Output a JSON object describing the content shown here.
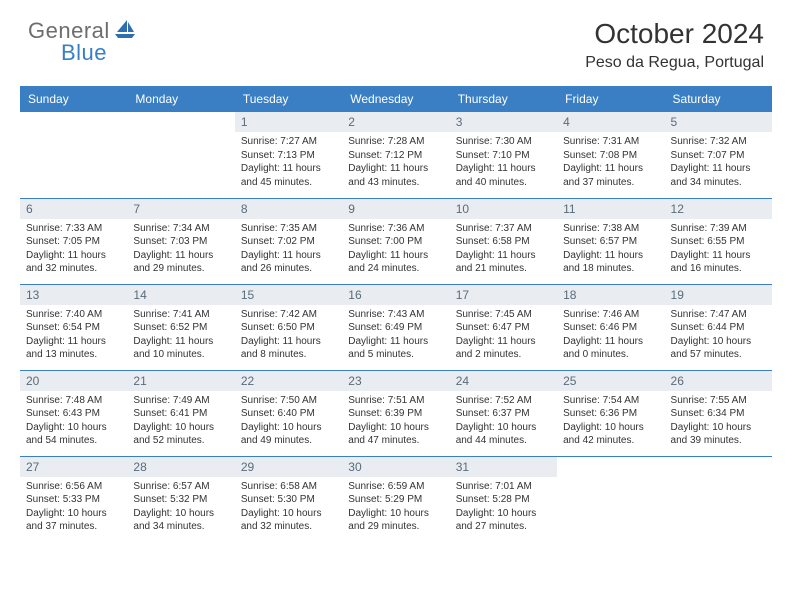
{
  "brand": {
    "text1": "General",
    "text2": "Blue",
    "color_general": "#6d6d6d",
    "color_blue": "#3a7fc4"
  },
  "header": {
    "title": "October 2024",
    "location": "Peso da Regua, Portugal"
  },
  "styling": {
    "header_bg": "#3a7fc4",
    "header_text": "#ffffff",
    "daynum_bg": "#e9edf1",
    "daynum_color": "#5a6b7a",
    "row_border": "#3a7fc4",
    "body_text": "#333333",
    "page_bg": "#ffffff",
    "title_fontsize": 28,
    "location_fontsize": 16,
    "dayheader_fontsize": 12,
    "daynum_fontsize": 12,
    "body_fontsize": 10
  },
  "calendar": {
    "type": "table",
    "days": [
      "Sunday",
      "Monday",
      "Tuesday",
      "Wednesday",
      "Thursday",
      "Friday",
      "Saturday"
    ],
    "weeks": [
      [
        {
          "n": "",
          "sr": "",
          "ss": "",
          "dl": ""
        },
        {
          "n": "",
          "sr": "",
          "ss": "",
          "dl": ""
        },
        {
          "n": "1",
          "sr": "Sunrise: 7:27 AM",
          "ss": "Sunset: 7:13 PM",
          "dl": "Daylight: 11 hours and 45 minutes."
        },
        {
          "n": "2",
          "sr": "Sunrise: 7:28 AM",
          "ss": "Sunset: 7:12 PM",
          "dl": "Daylight: 11 hours and 43 minutes."
        },
        {
          "n": "3",
          "sr": "Sunrise: 7:30 AM",
          "ss": "Sunset: 7:10 PM",
          "dl": "Daylight: 11 hours and 40 minutes."
        },
        {
          "n": "4",
          "sr": "Sunrise: 7:31 AM",
          "ss": "Sunset: 7:08 PM",
          "dl": "Daylight: 11 hours and 37 minutes."
        },
        {
          "n": "5",
          "sr": "Sunrise: 7:32 AM",
          "ss": "Sunset: 7:07 PM",
          "dl": "Daylight: 11 hours and 34 minutes."
        }
      ],
      [
        {
          "n": "6",
          "sr": "Sunrise: 7:33 AM",
          "ss": "Sunset: 7:05 PM",
          "dl": "Daylight: 11 hours and 32 minutes."
        },
        {
          "n": "7",
          "sr": "Sunrise: 7:34 AM",
          "ss": "Sunset: 7:03 PM",
          "dl": "Daylight: 11 hours and 29 minutes."
        },
        {
          "n": "8",
          "sr": "Sunrise: 7:35 AM",
          "ss": "Sunset: 7:02 PM",
          "dl": "Daylight: 11 hours and 26 minutes."
        },
        {
          "n": "9",
          "sr": "Sunrise: 7:36 AM",
          "ss": "Sunset: 7:00 PM",
          "dl": "Daylight: 11 hours and 24 minutes."
        },
        {
          "n": "10",
          "sr": "Sunrise: 7:37 AM",
          "ss": "Sunset: 6:58 PM",
          "dl": "Daylight: 11 hours and 21 minutes."
        },
        {
          "n": "11",
          "sr": "Sunrise: 7:38 AM",
          "ss": "Sunset: 6:57 PM",
          "dl": "Daylight: 11 hours and 18 minutes."
        },
        {
          "n": "12",
          "sr": "Sunrise: 7:39 AM",
          "ss": "Sunset: 6:55 PM",
          "dl": "Daylight: 11 hours and 16 minutes."
        }
      ],
      [
        {
          "n": "13",
          "sr": "Sunrise: 7:40 AM",
          "ss": "Sunset: 6:54 PM",
          "dl": "Daylight: 11 hours and 13 minutes."
        },
        {
          "n": "14",
          "sr": "Sunrise: 7:41 AM",
          "ss": "Sunset: 6:52 PM",
          "dl": "Daylight: 11 hours and 10 minutes."
        },
        {
          "n": "15",
          "sr": "Sunrise: 7:42 AM",
          "ss": "Sunset: 6:50 PM",
          "dl": "Daylight: 11 hours and 8 minutes."
        },
        {
          "n": "16",
          "sr": "Sunrise: 7:43 AM",
          "ss": "Sunset: 6:49 PM",
          "dl": "Daylight: 11 hours and 5 minutes."
        },
        {
          "n": "17",
          "sr": "Sunrise: 7:45 AM",
          "ss": "Sunset: 6:47 PM",
          "dl": "Daylight: 11 hours and 2 minutes."
        },
        {
          "n": "18",
          "sr": "Sunrise: 7:46 AM",
          "ss": "Sunset: 6:46 PM",
          "dl": "Daylight: 11 hours and 0 minutes."
        },
        {
          "n": "19",
          "sr": "Sunrise: 7:47 AM",
          "ss": "Sunset: 6:44 PM",
          "dl": "Daylight: 10 hours and 57 minutes."
        }
      ],
      [
        {
          "n": "20",
          "sr": "Sunrise: 7:48 AM",
          "ss": "Sunset: 6:43 PM",
          "dl": "Daylight: 10 hours and 54 minutes."
        },
        {
          "n": "21",
          "sr": "Sunrise: 7:49 AM",
          "ss": "Sunset: 6:41 PM",
          "dl": "Daylight: 10 hours and 52 minutes."
        },
        {
          "n": "22",
          "sr": "Sunrise: 7:50 AM",
          "ss": "Sunset: 6:40 PM",
          "dl": "Daylight: 10 hours and 49 minutes."
        },
        {
          "n": "23",
          "sr": "Sunrise: 7:51 AM",
          "ss": "Sunset: 6:39 PM",
          "dl": "Daylight: 10 hours and 47 minutes."
        },
        {
          "n": "24",
          "sr": "Sunrise: 7:52 AM",
          "ss": "Sunset: 6:37 PM",
          "dl": "Daylight: 10 hours and 44 minutes."
        },
        {
          "n": "25",
          "sr": "Sunrise: 7:54 AM",
          "ss": "Sunset: 6:36 PM",
          "dl": "Daylight: 10 hours and 42 minutes."
        },
        {
          "n": "26",
          "sr": "Sunrise: 7:55 AM",
          "ss": "Sunset: 6:34 PM",
          "dl": "Daylight: 10 hours and 39 minutes."
        }
      ],
      [
        {
          "n": "27",
          "sr": "Sunrise: 6:56 AM",
          "ss": "Sunset: 5:33 PM",
          "dl": "Daylight: 10 hours and 37 minutes."
        },
        {
          "n": "28",
          "sr": "Sunrise: 6:57 AM",
          "ss": "Sunset: 5:32 PM",
          "dl": "Daylight: 10 hours and 34 minutes."
        },
        {
          "n": "29",
          "sr": "Sunrise: 6:58 AM",
          "ss": "Sunset: 5:30 PM",
          "dl": "Daylight: 10 hours and 32 minutes."
        },
        {
          "n": "30",
          "sr": "Sunrise: 6:59 AM",
          "ss": "Sunset: 5:29 PM",
          "dl": "Daylight: 10 hours and 29 minutes."
        },
        {
          "n": "31",
          "sr": "Sunrise: 7:01 AM",
          "ss": "Sunset: 5:28 PM",
          "dl": "Daylight: 10 hours and 27 minutes."
        },
        {
          "n": "",
          "sr": "",
          "ss": "",
          "dl": ""
        },
        {
          "n": "",
          "sr": "",
          "ss": "",
          "dl": ""
        }
      ]
    ]
  }
}
